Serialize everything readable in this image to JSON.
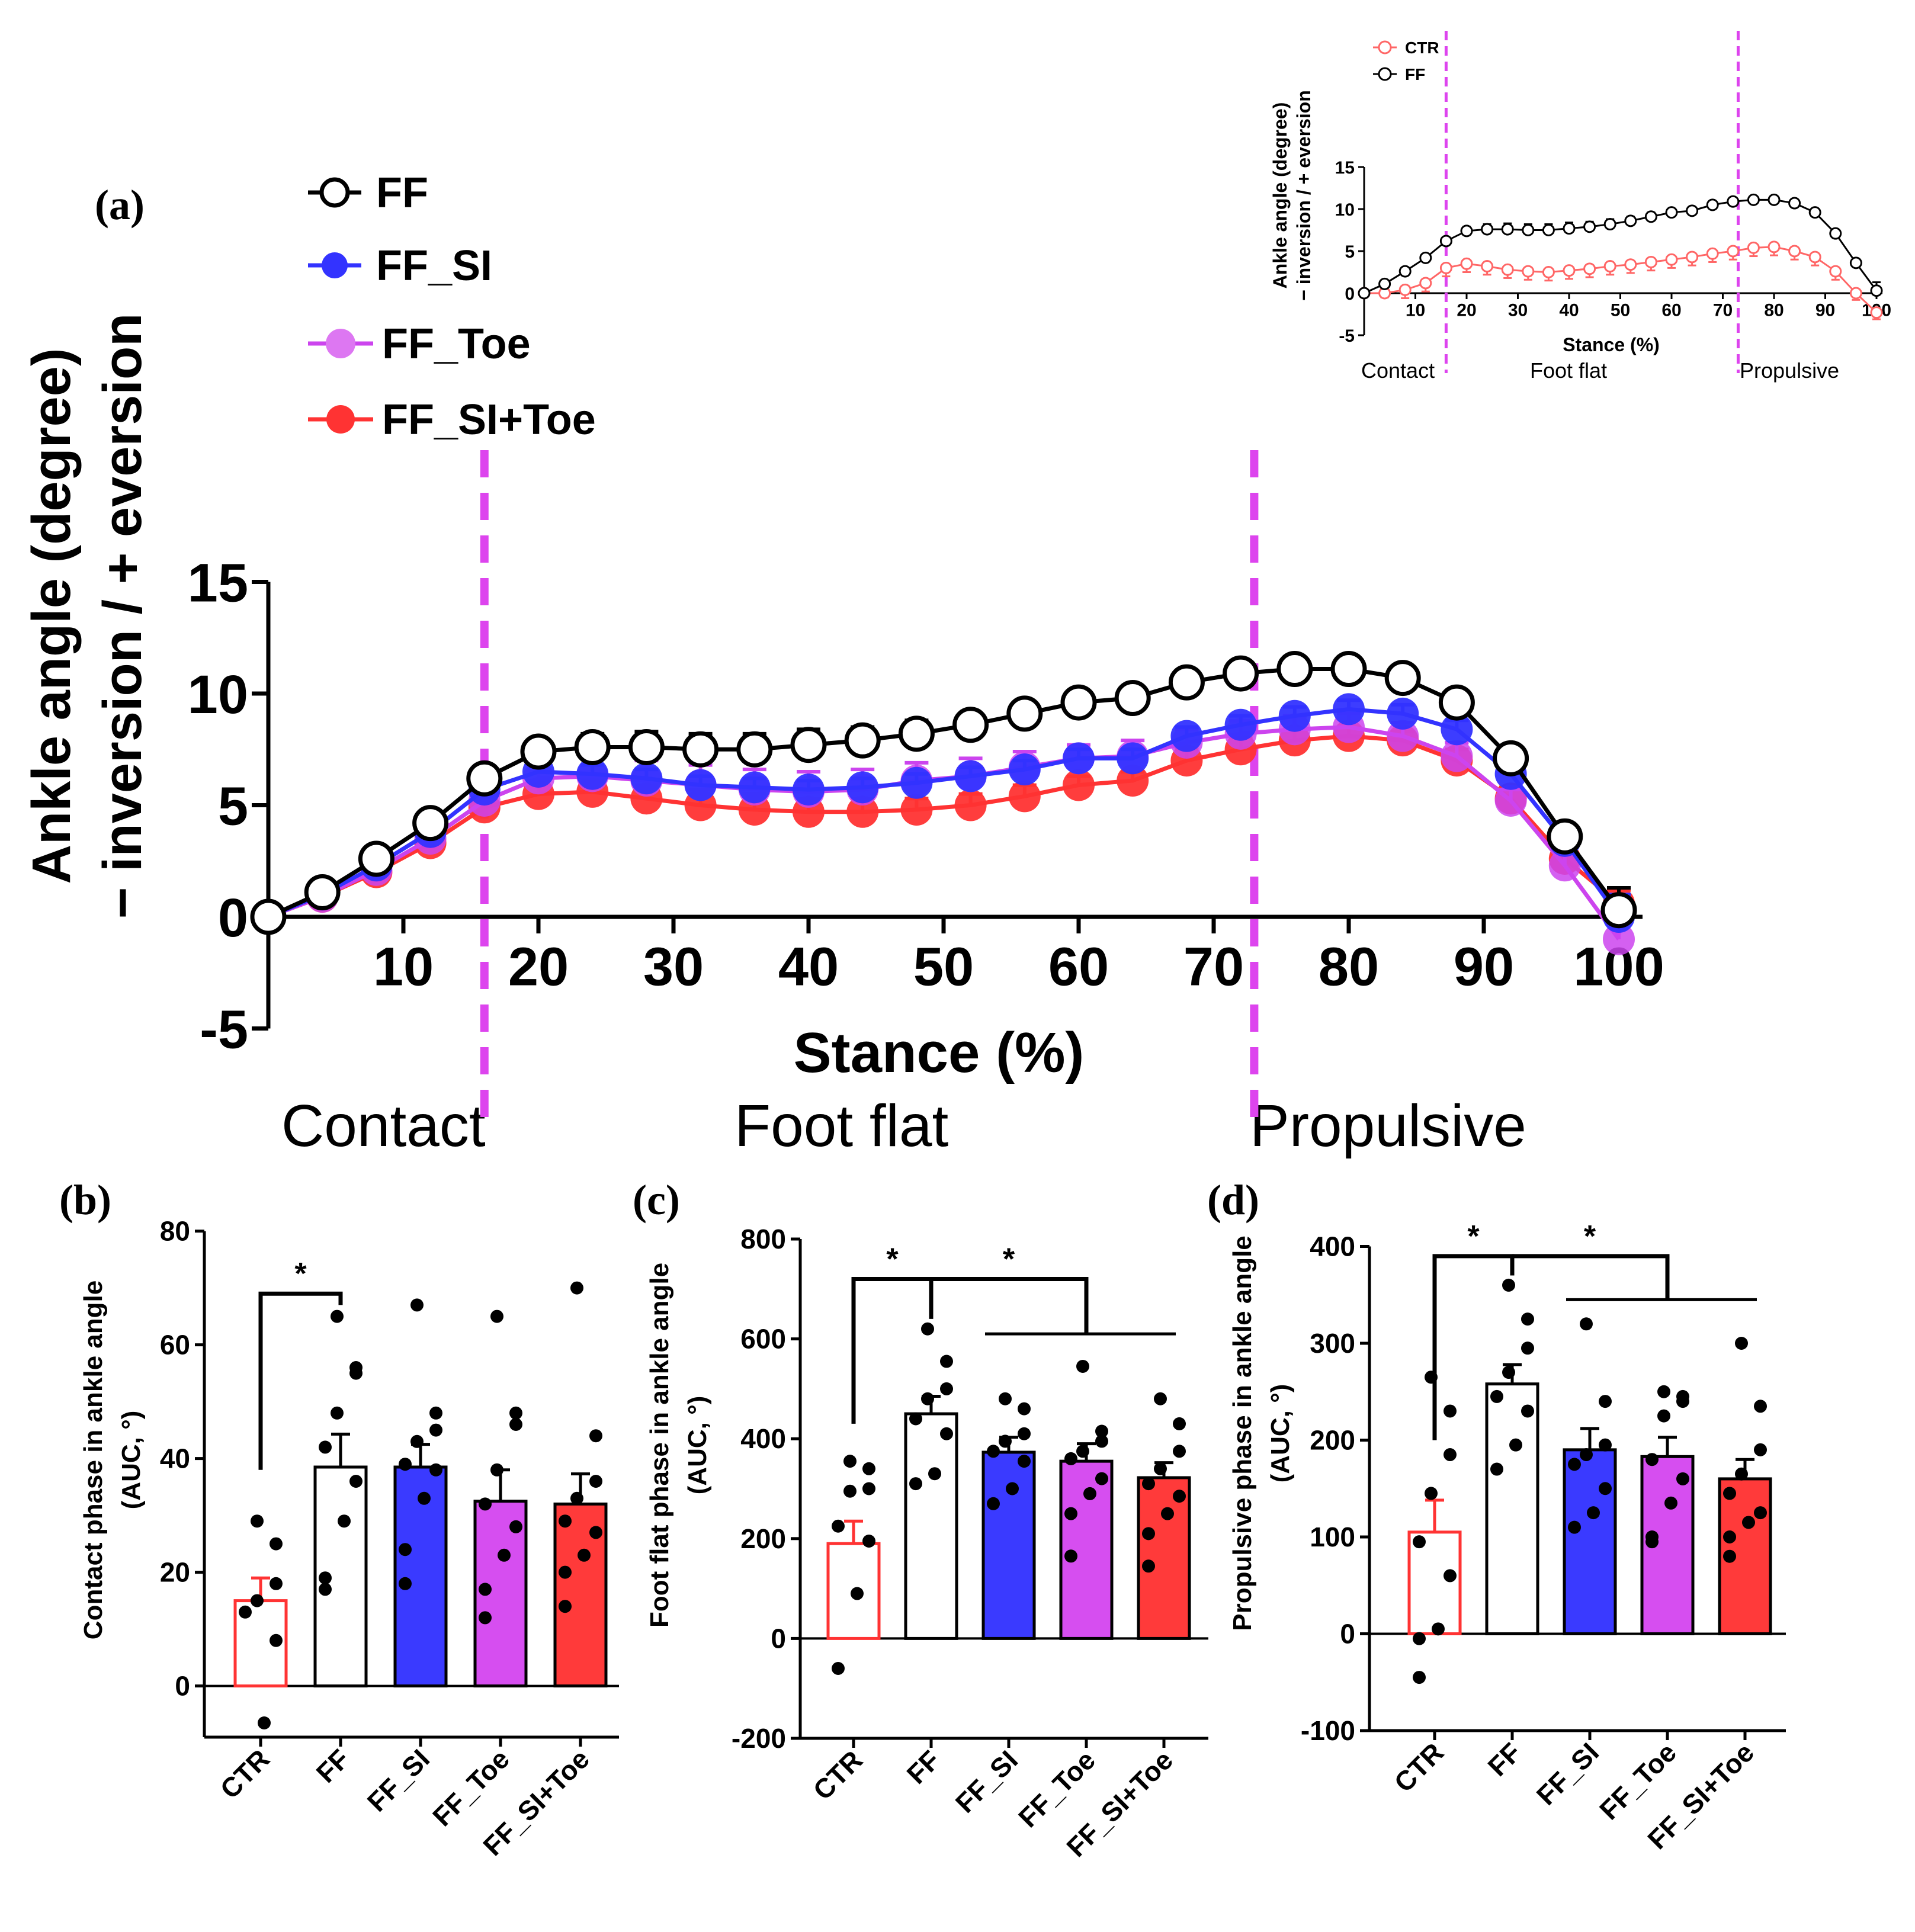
{
  "colors": {
    "FF": "#000000",
    "FF_SI": "#3333ff",
    "FF_Toe": "#cc44ee",
    "FF_SI+Toe": "#ff3333",
    "CTR": "#ff3333",
    "phase_line": "#dd44ee"
  },
  "chart_data": [
    {
      "id": "a",
      "panel_label": "(a)",
      "type": "line",
      "xlabel": "Stance (%)",
      "ylabel": [
        "Ankle angle (degree)",
        "− inversion / + eversion"
      ],
      "ylim": [
        -5,
        15
      ],
      "yticks": [
        -5,
        0,
        5,
        10,
        15
      ],
      "xlim": [
        0,
        100
      ],
      "xticks": [
        10,
        20,
        30,
        40,
        50,
        60,
        70,
        80,
        90,
        100
      ],
      "phase_boundaries": [
        16,
        73
      ],
      "phases": [
        "Contact",
        "Foot flat",
        "Propulsive"
      ],
      "legend": [
        "FF",
        "FF_SI",
        "FF_Toe",
        "FF_SI+Toe"
      ],
      "x": [
        0,
        4,
        8,
        12,
        16,
        20,
        24,
        28,
        32,
        36,
        40,
        44,
        48,
        52,
        56,
        60,
        64,
        68,
        72,
        76,
        80,
        84,
        88,
        92,
        96,
        100
      ],
      "series": [
        {
          "name": "FF_SI+Toe",
          "fill": true,
          "values": [
            0,
            0.9,
            2.0,
            3.3,
            4.9,
            5.5,
            5.6,
            5.3,
            5.0,
            4.8,
            4.7,
            4.7,
            4.8,
            5.0,
            5.4,
            5.9,
            6.1,
            7.0,
            7.5,
            7.9,
            8.1,
            7.9,
            7.0,
            5.3,
            2.6,
            0.6
          ],
          "errors": [
            0,
            0.15,
            0.3,
            0.4,
            0.5,
            0.6,
            0.6,
            0.6,
            0.7,
            0.7,
            0.6,
            0.6,
            0.5,
            0.5,
            0.5,
            0.4,
            0.4,
            0.5,
            0.5,
            0.5,
            0.4,
            0.4,
            0.5,
            0.5,
            0.5,
            0.6
          ]
        },
        {
          "name": "FF_Toe",
          "fill": true,
          "values": [
            0,
            0.9,
            2.1,
            3.5,
            5.2,
            6.2,
            6.3,
            6.1,
            5.9,
            5.7,
            5.6,
            5.7,
            6.1,
            6.3,
            6.7,
            7.1,
            7.2,
            7.8,
            8.2,
            8.4,
            8.5,
            8.1,
            7.2,
            5.2,
            2.3,
            -1.0
          ],
          "errors": [
            0,
            0.15,
            0.3,
            0.4,
            0.6,
            0.7,
            0.8,
            0.9,
            0.9,
            0.9,
            0.9,
            0.9,
            0.8,
            0.8,
            0.7,
            0.6,
            0.7,
            0.6,
            0.6,
            0.6,
            0.6,
            0.6,
            0.6,
            0.5,
            0.5,
            0.8
          ]
        },
        {
          "name": "FF_SI",
          "fill": true,
          "values": [
            0,
            1.0,
            2.3,
            3.8,
            5.7,
            6.5,
            6.4,
            6.2,
            5.9,
            5.8,
            5.7,
            5.8,
            6.0,
            6.3,
            6.6,
            7.1,
            7.1,
            8.1,
            8.6,
            9.0,
            9.3,
            9.1,
            8.4,
            6.4,
            3.4,
            0.0
          ],
          "errors": [
            0,
            0.15,
            0.3,
            0.4,
            0.5,
            0.4,
            0.4,
            0.4,
            0.4,
            0.4,
            0.4,
            0.4,
            0.4,
            0.4,
            0.4,
            0.4,
            0.4,
            0.4,
            0.4,
            0.4,
            0.4,
            0.4,
            0.4,
            0.4,
            0.4,
            1.0
          ]
        },
        {
          "name": "FF",
          "fill": false,
          "values": [
            0,
            1.1,
            2.6,
            4.2,
            6.2,
            7.4,
            7.6,
            7.6,
            7.5,
            7.5,
            7.7,
            7.9,
            8.2,
            8.6,
            9.1,
            9.6,
            9.8,
            10.5,
            10.9,
            11.1,
            11.1,
            10.7,
            9.6,
            7.1,
            3.6,
            0.3
          ],
          "errors": [
            0,
            0.15,
            0.2,
            0.3,
            0.4,
            0.5,
            0.6,
            0.7,
            0.7,
            0.7,
            0.7,
            0.6,
            0.6,
            0.5,
            0.5,
            0.4,
            0.4,
            0.4,
            0.3,
            0.4,
            0.4,
            0.4,
            0.4,
            0.3,
            0.4,
            1.0
          ]
        }
      ]
    },
    {
      "id": "inset",
      "type": "line",
      "xlabel": "Stance (%)",
      "ylabel": [
        "Ankle angle (degree)",
        "− inversion / + eversion"
      ],
      "ylim": [
        -5,
        15
      ],
      "yticks": [
        -5,
        0,
        5,
        10,
        15
      ],
      "xticks": [
        10,
        20,
        30,
        40,
        50,
        60,
        70,
        80,
        90,
        100
      ],
      "phase_boundaries": [
        16,
        73
      ],
      "phases": [
        "Contact",
        "Foot flat",
        "Propulsive"
      ],
      "legend": [
        "CTR",
        "FF"
      ],
      "x": [
        0,
        4,
        8,
        12,
        16,
        20,
        24,
        28,
        32,
        36,
        40,
        44,
        48,
        52,
        56,
        60,
        64,
        68,
        72,
        76,
        80,
        84,
        88,
        92,
        96,
        100
      ],
      "series": [
        {
          "name": "CTR",
          "values": [
            0,
            0.0,
            0.4,
            1.2,
            3.0,
            3.5,
            3.2,
            2.8,
            2.6,
            2.5,
            2.7,
            2.9,
            3.2,
            3.4,
            3.7,
            4.0,
            4.3,
            4.7,
            5.0,
            5.4,
            5.5,
            5.0,
            4.3,
            2.6,
            0.0,
            -2.3
          ],
          "errors": [
            0,
            0.5,
            1.0,
            1.0,
            1.0,
            1.0,
            1.0,
            1.0,
            1.0,
            1.0,
            1.0,
            1.0,
            1.0,
            1.0,
            1.0,
            1.0,
            1.0,
            1.0,
            1.0,
            1.0,
            1.0,
            1.0,
            1.0,
            1.0,
            0.8,
            0.8
          ]
        },
        {
          "name": "FF",
          "values": [
            0,
            1.1,
            2.6,
            4.2,
            6.2,
            7.4,
            7.6,
            7.6,
            7.5,
            7.5,
            7.7,
            7.9,
            8.2,
            8.6,
            9.1,
            9.6,
            9.8,
            10.5,
            10.9,
            11.1,
            11.1,
            10.7,
            9.6,
            7.1,
            3.6,
            0.3
          ],
          "errors": [
            0,
            0.15,
            0.2,
            0.3,
            0.4,
            0.5,
            0.6,
            0.7,
            0.7,
            0.7,
            0.7,
            0.6,
            0.6,
            0.5,
            0.5,
            0.4,
            0.4,
            0.4,
            0.3,
            0.4,
            0.4,
            0.4,
            0.4,
            0.3,
            0.4,
            1.0
          ]
        }
      ]
    },
    {
      "id": "b",
      "panel_label": "(b)",
      "type": "bar",
      "ylabel": [
        "Contact phase in ankle angle",
        "(AUC, °)"
      ],
      "ylim": [
        -9,
        80
      ],
      "yticks": [
        0,
        20,
        40,
        60,
        80
      ],
      "categories": [
        "CTR",
        "FF",
        "FF_SI",
        "FF_Toe",
        "FF_SI+Toe"
      ],
      "values": [
        15,
        38.5,
        38.5,
        32.5,
        32
      ],
      "errors": [
        4,
        5.8,
        4,
        5.5,
        5.3
      ],
      "points": [
        [
          29,
          25,
          18,
          15,
          13,
          8,
          -6.5
        ],
        [
          65,
          56,
          55,
          48,
          42,
          36,
          29,
          19,
          17
        ],
        [
          67,
          48,
          45,
          43,
          39,
          38,
          33,
          24,
          18
        ],
        [
          65,
          48,
          46,
          38,
          32,
          28,
          23,
          17,
          12
        ],
        [
          70,
          44,
          36,
          33,
          29,
          27,
          23,
          20,
          14
        ]
      ],
      "significance": [
        {
          "groups": [
            0,
            1
          ],
          "label": "*"
        }
      ]
    },
    {
      "id": "c",
      "panel_label": "(c)",
      "type": "bar",
      "ylabel": [
        "Foot flat phase in ankle angle",
        "(AUC, °)"
      ],
      "ylim": [
        -200,
        800
      ],
      "yticks": [
        -200,
        0,
        200,
        400,
        600,
        800
      ],
      "categories": [
        "CTR",
        "FF",
        "FF_SI",
        "FF_Toe",
        "FF_SI+Toe"
      ],
      "values": [
        190,
        450,
        373,
        355,
        322
      ],
      "errors": [
        45,
        35,
        30,
        35,
        30
      ],
      "points": [
        [
          355,
          340,
          300,
          295,
          225,
          195,
          90,
          -60
        ],
        [
          620,
          555,
          500,
          480,
          440,
          410,
          330,
          310
        ],
        [
          480,
          460,
          410,
          395,
          375,
          355,
          300,
          270
        ],
        [
          545,
          415,
          395,
          375,
          360,
          320,
          290,
          250,
          165
        ],
        [
          480,
          430,
          375,
          340,
          310,
          285,
          250,
          210,
          145
        ]
      ],
      "significance": [
        {
          "groups": [
            0,
            1
          ],
          "label": "*"
        },
        {
          "groups": [
            1,
            "2-4"
          ],
          "label": "*"
        }
      ]
    },
    {
      "id": "d",
      "panel_label": "(d)",
      "type": "bar",
      "ylabel": [
        "Propulsive phase in ankle angle",
        "(AUC, °)"
      ],
      "ylim": [
        -100,
        400
      ],
      "yticks": [
        -100,
        0,
        100,
        200,
        300,
        400
      ],
      "categories": [
        "CTR",
        "FF",
        "FF_SI",
        "FF_Toe",
        "FF_SI+Toe"
      ],
      "values": [
        105,
        258,
        190,
        183,
        160
      ],
      "errors": [
        33,
        20,
        22,
        20,
        20
      ],
      "points": [
        [
          265,
          230,
          185,
          145,
          95,
          60,
          5,
          -5,
          -45
        ],
        [
          360,
          325,
          295,
          270,
          245,
          230,
          195,
          170
        ],
        [
          320,
          240,
          195,
          185,
          175,
          150,
          125,
          110
        ],
        [
          250,
          245,
          240,
          225,
          180,
          160,
          135,
          100,
          95
        ],
        [
          300,
          235,
          190,
          165,
          145,
          125,
          115,
          100,
          80
        ]
      ],
      "significance": [
        {
          "groups": [
            0,
            1
          ],
          "label": "*"
        },
        {
          "groups": [
            1,
            "2-4"
          ],
          "label": "*"
        }
      ]
    }
  ]
}
